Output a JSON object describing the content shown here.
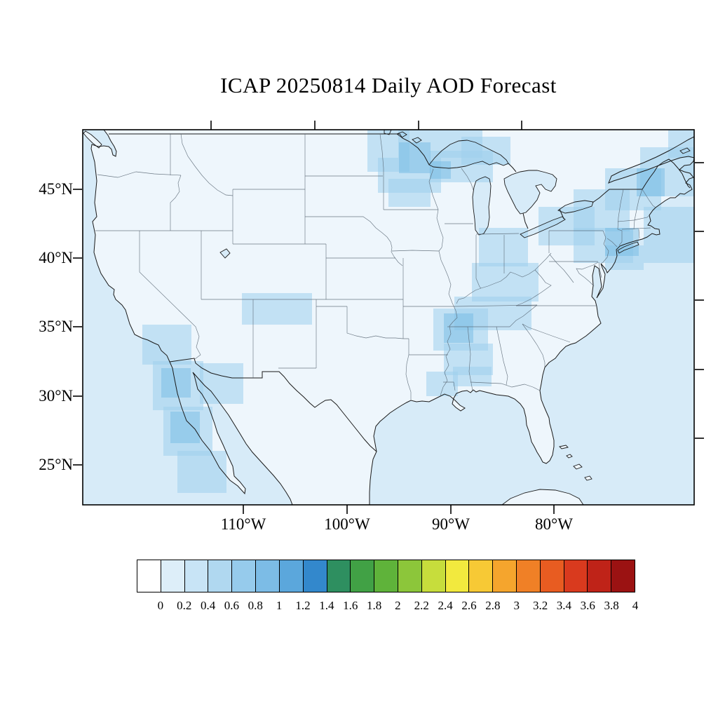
{
  "title": "ICAP 20250814 Daily AOD Forecast",
  "axes": {
    "lat_labels": [
      "45°N",
      "40°N",
      "35°N",
      "30°N",
      "25°N"
    ],
    "lon_labels": [
      "110°W",
      "100°W",
      "90°W",
      "80°W"
    ]
  },
  "colorbar": {
    "tick_labels": [
      "0",
      "0.2",
      "0.4",
      "0.6",
      "0.8",
      "1",
      "1.2",
      "1.4",
      "1.6",
      "1.8",
      "2",
      "2.2",
      "2.4",
      "2.6",
      "2.8",
      "3",
      "3.2",
      "3.4",
      "3.6",
      "3.8",
      "4"
    ],
    "colors": [
      "#ffffff",
      "#ddeef9",
      "#c8e4f6",
      "#b0d8f0",
      "#96cbec",
      "#7cbce6",
      "#5ba7dc",
      "#3388cc",
      "#2e8f60",
      "#41a145",
      "#5fb33a",
      "#8cc63a",
      "#c7dd3c",
      "#f2e93e",
      "#f7c935",
      "#f5a52d",
      "#f08026",
      "#e85c21",
      "#d93a1e",
      "#bf2318",
      "#9b1212"
    ]
  },
  "colors": {
    "ocean": "#d7ebf8",
    "land": "#eef6fc",
    "aod1": "#9fd0ec",
    "aod2": "#6fb7e2",
    "frame": "#000000",
    "state_line": "#53626e",
    "border_line": "#1a1a1a"
  },
  "chart_data": {
    "type": "heatmap",
    "title": "ICAP 20250814 Daily AOD Forecast",
    "region": "Continental United States and surroundings",
    "colorbar_range": [
      0,
      4
    ],
    "colorbar_step": 0.2,
    "background_aod_range": [
      0,
      0.2
    ],
    "regions_enhanced": [
      {
        "area": "Upper Midwest / western Great Lakes / southern Canada",
        "aod": 0.3
      },
      {
        "area": "Northeast US coast and adjacent Atlantic",
        "aod": 0.3
      },
      {
        "area": "Ohio Valley / Kentucky / Tennessee",
        "aod": 0.25
      },
      {
        "area": "Lower Mississippi Valley / Alabama",
        "aod": 0.25
      },
      {
        "area": "Four Corners (CO/UT/NM)",
        "aod": 0.25
      },
      {
        "area": "Arizona / Sonora border",
        "aod": 0.25
      },
      {
        "area": "Southern California coast / Baja California",
        "aod": 0.3
      }
    ]
  }
}
